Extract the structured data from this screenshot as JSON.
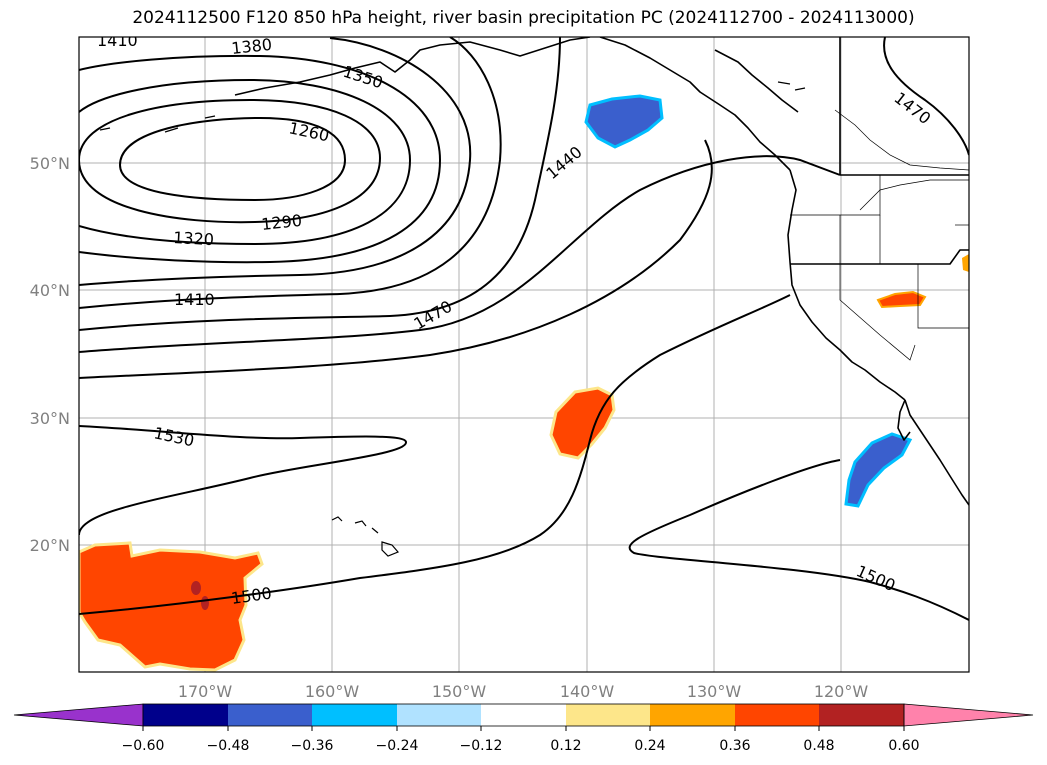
{
  "title": "2024112500 F120 850 hPa height, river basin precipitation PC (2024112700 - 2024113000)",
  "lat_labels": [
    "50°N",
    "40°N",
    "30°N",
    "20°N"
  ],
  "lon_labels": [
    "170°W",
    "160°W",
    "150°W",
    "140°W",
    "130°W",
    "120°W"
  ],
  "contour_labels": [
    "1410",
    "1380",
    "1350",
    "1260",
    "1290",
    "1320",
    "1410",
    "1440",
    "1470",
    "1470",
    "1530",
    "1500",
    "1500"
  ],
  "colorbar": {
    "ticks": [
      "−0.60",
      "−0.48",
      "−0.36",
      "−0.24",
      "−0.12",
      "0.12",
      "0.24",
      "0.36",
      "0.48",
      "0.60"
    ],
    "colors": [
      "#9932cc",
      "#00008b",
      "#3a5fcd",
      "#00bfff",
      "#b0e2ff",
      "#ffffff",
      "#fde68a",
      "#ffa500",
      "#ff4500",
      "#b22222",
      "#ff82ab"
    ]
  }
}
